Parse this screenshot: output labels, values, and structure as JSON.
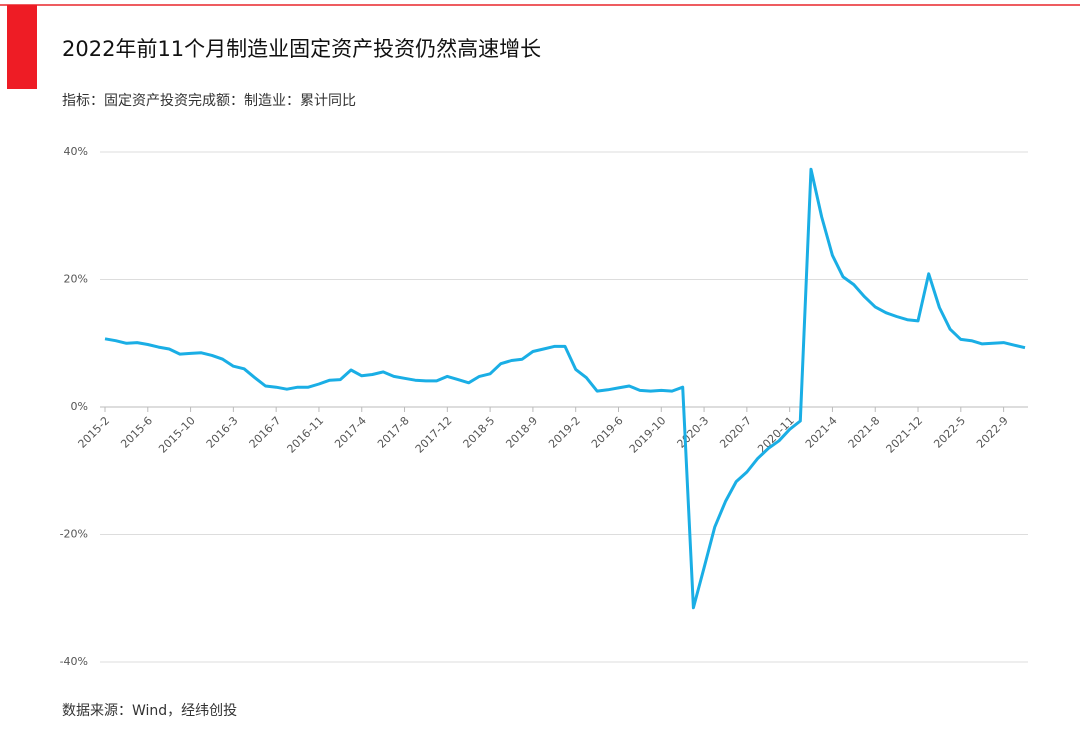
{
  "chart_data": {
    "type": "line",
    "title": "2022年前11个月制造业固定资产投资仍然高速增长",
    "subtitle": "指标：固定资产投资完成额：制造业：累计同比",
    "source": "数据来源：Wind，经纬创投",
    "categories": [
      "2015-2",
      null,
      null,
      null,
      "2015-6",
      null,
      null,
      null,
      "2015-10",
      null,
      null,
      null,
      "2016-3",
      null,
      null,
      null,
      "2016-7",
      null,
      null,
      null,
      "2016-11",
      null,
      null,
      null,
      "2017-4",
      null,
      null,
      null,
      "2017-8",
      null,
      null,
      null,
      "2017-12",
      null,
      null,
      null,
      "2018-5",
      null,
      null,
      null,
      "2018-9",
      null,
      null,
      null,
      "2019-2",
      null,
      null,
      null,
      "2019-6",
      null,
      null,
      null,
      "2019-10",
      null,
      null,
      null,
      "2020-3",
      null,
      null,
      null,
      "2020-7",
      null,
      null,
      null,
      "2020-11",
      null,
      null,
      null,
      "2021-4",
      null,
      null,
      null,
      "2021-8",
      null,
      null,
      null,
      "2021-12",
      null,
      null,
      null,
      "2022-5",
      null,
      null,
      null,
      "2022-9",
      null,
      null
    ],
    "values": [
      10.7,
      10.4,
      10.0,
      10.1,
      9.8,
      9.4,
      9.1,
      8.3,
      8.4,
      8.5,
      8.1,
      7.5,
      6.4,
      6.0,
      4.6,
      3.3,
      3.1,
      2.8,
      3.1,
      3.1,
      3.6,
      4.2,
      4.3,
      5.8,
      4.9,
      5.1,
      5.5,
      4.8,
      4.5,
      4.2,
      4.1,
      4.1,
      4.8,
      4.3,
      3.8,
      4.8,
      5.2,
      6.8,
      7.3,
      7.5,
      8.7,
      9.1,
      9.5,
      9.5,
      5.9,
      4.6,
      2.5,
      2.7,
      3.0,
      3.3,
      2.6,
      2.5,
      2.6,
      2.5,
      3.1,
      -31.5,
      -25.2,
      -18.8,
      -14.8,
      -11.7,
      -10.2,
      -8.1,
      -6.5,
      -5.3,
      -3.5,
      -2.2,
      37.3,
      29.8,
      23.8,
      20.4,
      19.2,
      17.3,
      15.7,
      14.8,
      14.2,
      13.7,
      13.5,
      20.9,
      15.6,
      12.2,
      10.6,
      10.4,
      9.9,
      10.0,
      10.1,
      9.7,
      9.3
    ],
    "color": "#1aaee5",
    "ylim": [
      -40,
      40
    ],
    "yticks": [
      {
        "value": -40,
        "label": "-40%"
      },
      {
        "value": -20,
        "label": "-20%"
      },
      {
        "value": 0,
        "label": "0%"
      },
      {
        "value": 20,
        "label": "20%"
      },
      {
        "value": 40,
        "label": "40%"
      }
    ],
    "grid": true
  }
}
